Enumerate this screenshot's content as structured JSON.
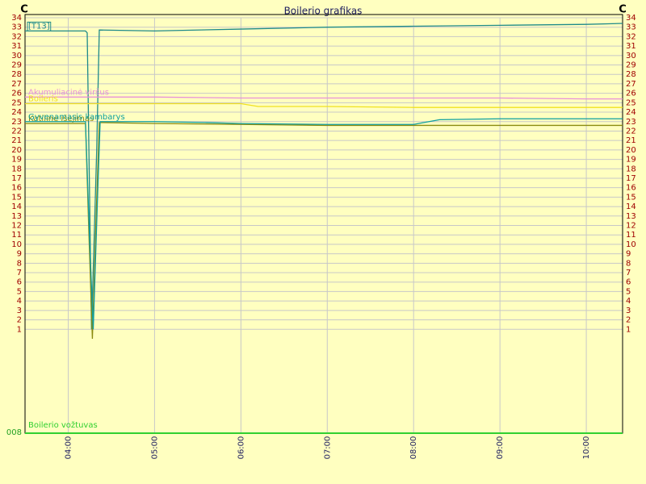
{
  "chart_data": {
    "type": "line",
    "title": "Boilerio grafikas",
    "y_label_left": "C",
    "y_label_right": "C",
    "bottom_label": "008",
    "xlim": [
      3.5,
      10.42
    ],
    "ylim": [
      -10,
      34
    ],
    "xticks": [
      {
        "value": 4,
        "label": "04:00"
      },
      {
        "value": 5,
        "label": "05:00"
      },
      {
        "value": 6,
        "label": "06:00"
      },
      {
        "value": 7,
        "label": "07:00"
      },
      {
        "value": 8,
        "label": "08:00"
      },
      {
        "value": 9,
        "label": "09:00"
      },
      {
        "value": 10,
        "label": "10:00"
      }
    ],
    "yticks": [
      1,
      2,
      3,
      4,
      5,
      6,
      7,
      8,
      9,
      10,
      11,
      12,
      13,
      14,
      15,
      16,
      17,
      18,
      19,
      20,
      21,
      22,
      23,
      24,
      25,
      26,
      27,
      28,
      29,
      30,
      31,
      32,
      33,
      34
    ],
    "grid": true,
    "series": [
      {
        "name": "[T13]",
        "color": "#1f8a8a",
        "x": [
          3.5,
          4.2,
          4.22,
          4.27,
          4.33,
          4.36,
          5,
          6,
          7,
          8,
          9,
          10,
          10.42
        ],
        "values": [
          32.6,
          32.6,
          32.4,
          1,
          20,
          32.7,
          32.6,
          32.8,
          33.0,
          33.1,
          33.2,
          33.3,
          33.4
        ]
      },
      {
        "name": "Akumuliacinė viršus",
        "color": "#e890d8",
        "x": [
          3.5,
          5,
          6,
          7,
          8,
          9,
          10,
          10.42
        ],
        "values": [
          25.6,
          25.6,
          25.5,
          25.5,
          25.5,
          25.5,
          25.4,
          25.4
        ]
      },
      {
        "name": "Boileris",
        "color": "#f0e020",
        "x": [
          3.5,
          5,
          6,
          6.2,
          7,
          8,
          9,
          10,
          10.42
        ],
        "values": [
          24.9,
          24.9,
          24.9,
          24.6,
          24.6,
          24.5,
          24.5,
          24.5,
          24.5
        ]
      },
      {
        "name": "Katilinė išėjimas",
        "color": "#8a8a10",
        "x": [
          3.5,
          4.2,
          4.24,
          4.28,
          4.32,
          4.36,
          5,
          6,
          7,
          8,
          9,
          10,
          10.42
        ],
        "values": [
          22.8,
          22.8,
          11,
          0,
          12,
          22.9,
          22.8,
          22.7,
          22.6,
          22.6,
          22.6,
          22.6,
          22.6
        ]
      },
      {
        "name": "Gyvenamasis kambarys",
        "color": "#10a0a0",
        "x": [
          3.5,
          4.2,
          4.25,
          4.29,
          4.34,
          4.37,
          5,
          5.6,
          6,
          7,
          8,
          8.3,
          9,
          10,
          10.42
        ],
        "values": [
          23.0,
          23.0,
          10,
          1,
          15,
          23.0,
          23.0,
          22.9,
          22.8,
          22.7,
          22.7,
          23.2,
          23.3,
          23.3,
          23.3
        ]
      },
      {
        "name": "Boilerio vožtuvas",
        "color": "#30d030",
        "x": [
          3.5,
          10.42
        ],
        "values": [
          -10,
          -10
        ]
      }
    ]
  }
}
